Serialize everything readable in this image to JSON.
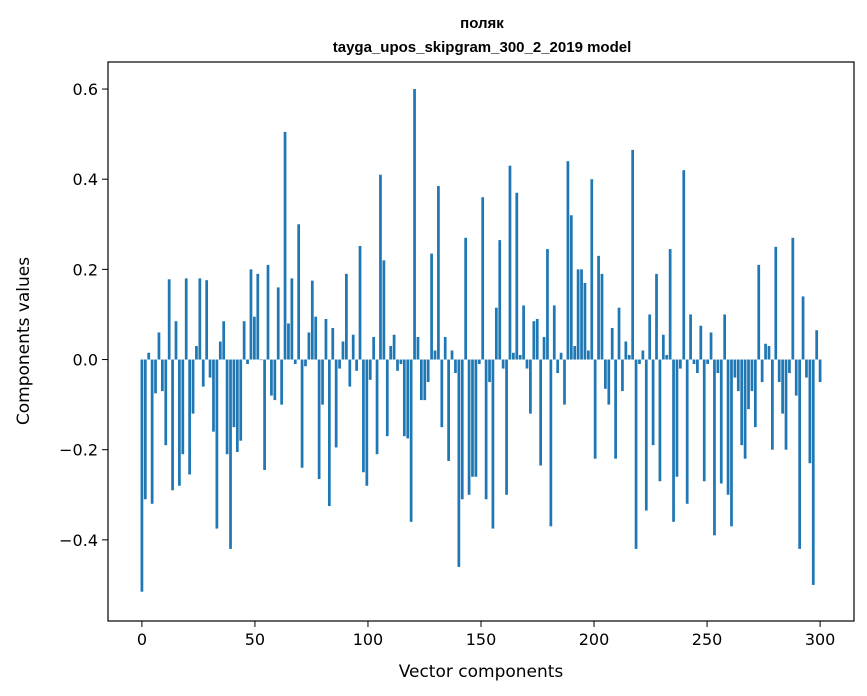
{
  "chart_data": {
    "type": "bar",
    "title": "поляк",
    "subtitle": "tayga_upos_skipgram_300_2_2019 model",
    "xlabel": "Vector components",
    "ylabel": "Components values",
    "xlim": [
      -15,
      315
    ],
    "ylim": [
      -0.58,
      0.66
    ],
    "xticks": [
      0,
      50,
      100,
      150,
      200,
      250,
      300
    ],
    "yticks": [
      -0.4,
      -0.2,
      0.0,
      0.2,
      0.4,
      0.6
    ],
    "xtick_labels": [
      "0",
      "50",
      "100",
      "150",
      "200",
      "250",
      "300"
    ],
    "ytick_labels": [
      "−0.4",
      "−0.2",
      "0.0",
      "0.2",
      "0.4",
      "0.6"
    ],
    "grid": false,
    "bar_color": "#1f77b4",
    "values": [
      -0.515,
      -0.31,
      0.015,
      -0.32,
      -0.075,
      0.06,
      -0.07,
      -0.19,
      0.178,
      -0.29,
      0.085,
      -0.28,
      -0.21,
      0.18,
      -0.255,
      -0.12,
      0.03,
      0.18,
      -0.06,
      0.176,
      -0.04,
      -0.16,
      -0.375,
      0.04,
      0.085,
      -0.21,
      -0.42,
      -0.15,
      -0.205,
      -0.18,
      0.085,
      -0.01,
      0.2,
      0.095,
      0.19,
      0.0,
      -0.245,
      0.21,
      -0.08,
      -0.09,
      0.16,
      -0.1,
      0.505,
      0.08,
      0.18,
      -0.01,
      0.3,
      -0.24,
      -0.015,
      0.06,
      0.175,
      0.095,
      -0.265,
      -0.1,
      0.09,
      -0.325,
      0.07,
      -0.195,
      -0.02,
      0.04,
      0.19,
      -0.06,
      0.055,
      -0.025,
      0.252,
      -0.25,
      -0.28,
      -0.045,
      0.05,
      -0.21,
      0.41,
      0.22,
      -0.17,
      0.03,
      0.055,
      -0.025,
      -0.01,
      -0.17,
      -0.175,
      -0.36,
      0.6,
      0.05,
      -0.09,
      -0.09,
      -0.05,
      0.235,
      0.02,
      0.385,
      -0.15,
      0.05,
      -0.225,
      0.02,
      -0.03,
      -0.46,
      -0.31,
      0.27,
      -0.3,
      -0.26,
      -0.26,
      -0.01,
      0.36,
      -0.31,
      -0.05,
      -0.375,
      0.115,
      0.265,
      -0.02,
      -0.3,
      0.43,
      0.015,
      0.37,
      0.01,
      0.12,
      -0.02,
      -0.12,
      0.085,
      0.09,
      -0.235,
      0.05,
      0.245,
      -0.37,
      0.12,
      -0.03,
      0.015,
      -0.1,
      0.44,
      0.32,
      0.03,
      0.2,
      0.2,
      0.17,
      0.02,
      0.4,
      -0.22,
      0.23,
      0.19,
      -0.065,
      -0.1,
      0.07,
      -0.22,
      0.115,
      -0.07,
      0.04,
      0.01,
      0.465,
      -0.42,
      -0.01,
      0.02,
      -0.335,
      0.1,
      -0.19,
      0.19,
      -0.27,
      0.055,
      0.01,
      0.245,
      -0.36,
      -0.26,
      -0.02,
      0.42,
      -0.32,
      0.1,
      -0.01,
      -0.03,
      0.075,
      -0.27,
      -0.01,
      0.06,
      -0.39,
      -0.03,
      -0.275,
      0.1,
      -0.3,
      -0.37,
      -0.04,
      -0.07,
      -0.19,
      -0.22,
      -0.11,
      -0.07,
      -0.15,
      0.21,
      -0.05,
      0.035,
      0.03,
      -0.2,
      0.25,
      -0.05,
      -0.12,
      -0.2,
      -0.03,
      0.27,
      -0.08,
      -0.42,
      0.14,
      -0.04,
      -0.23,
      -0.5,
      0.065,
      -0.05
    ]
  }
}
